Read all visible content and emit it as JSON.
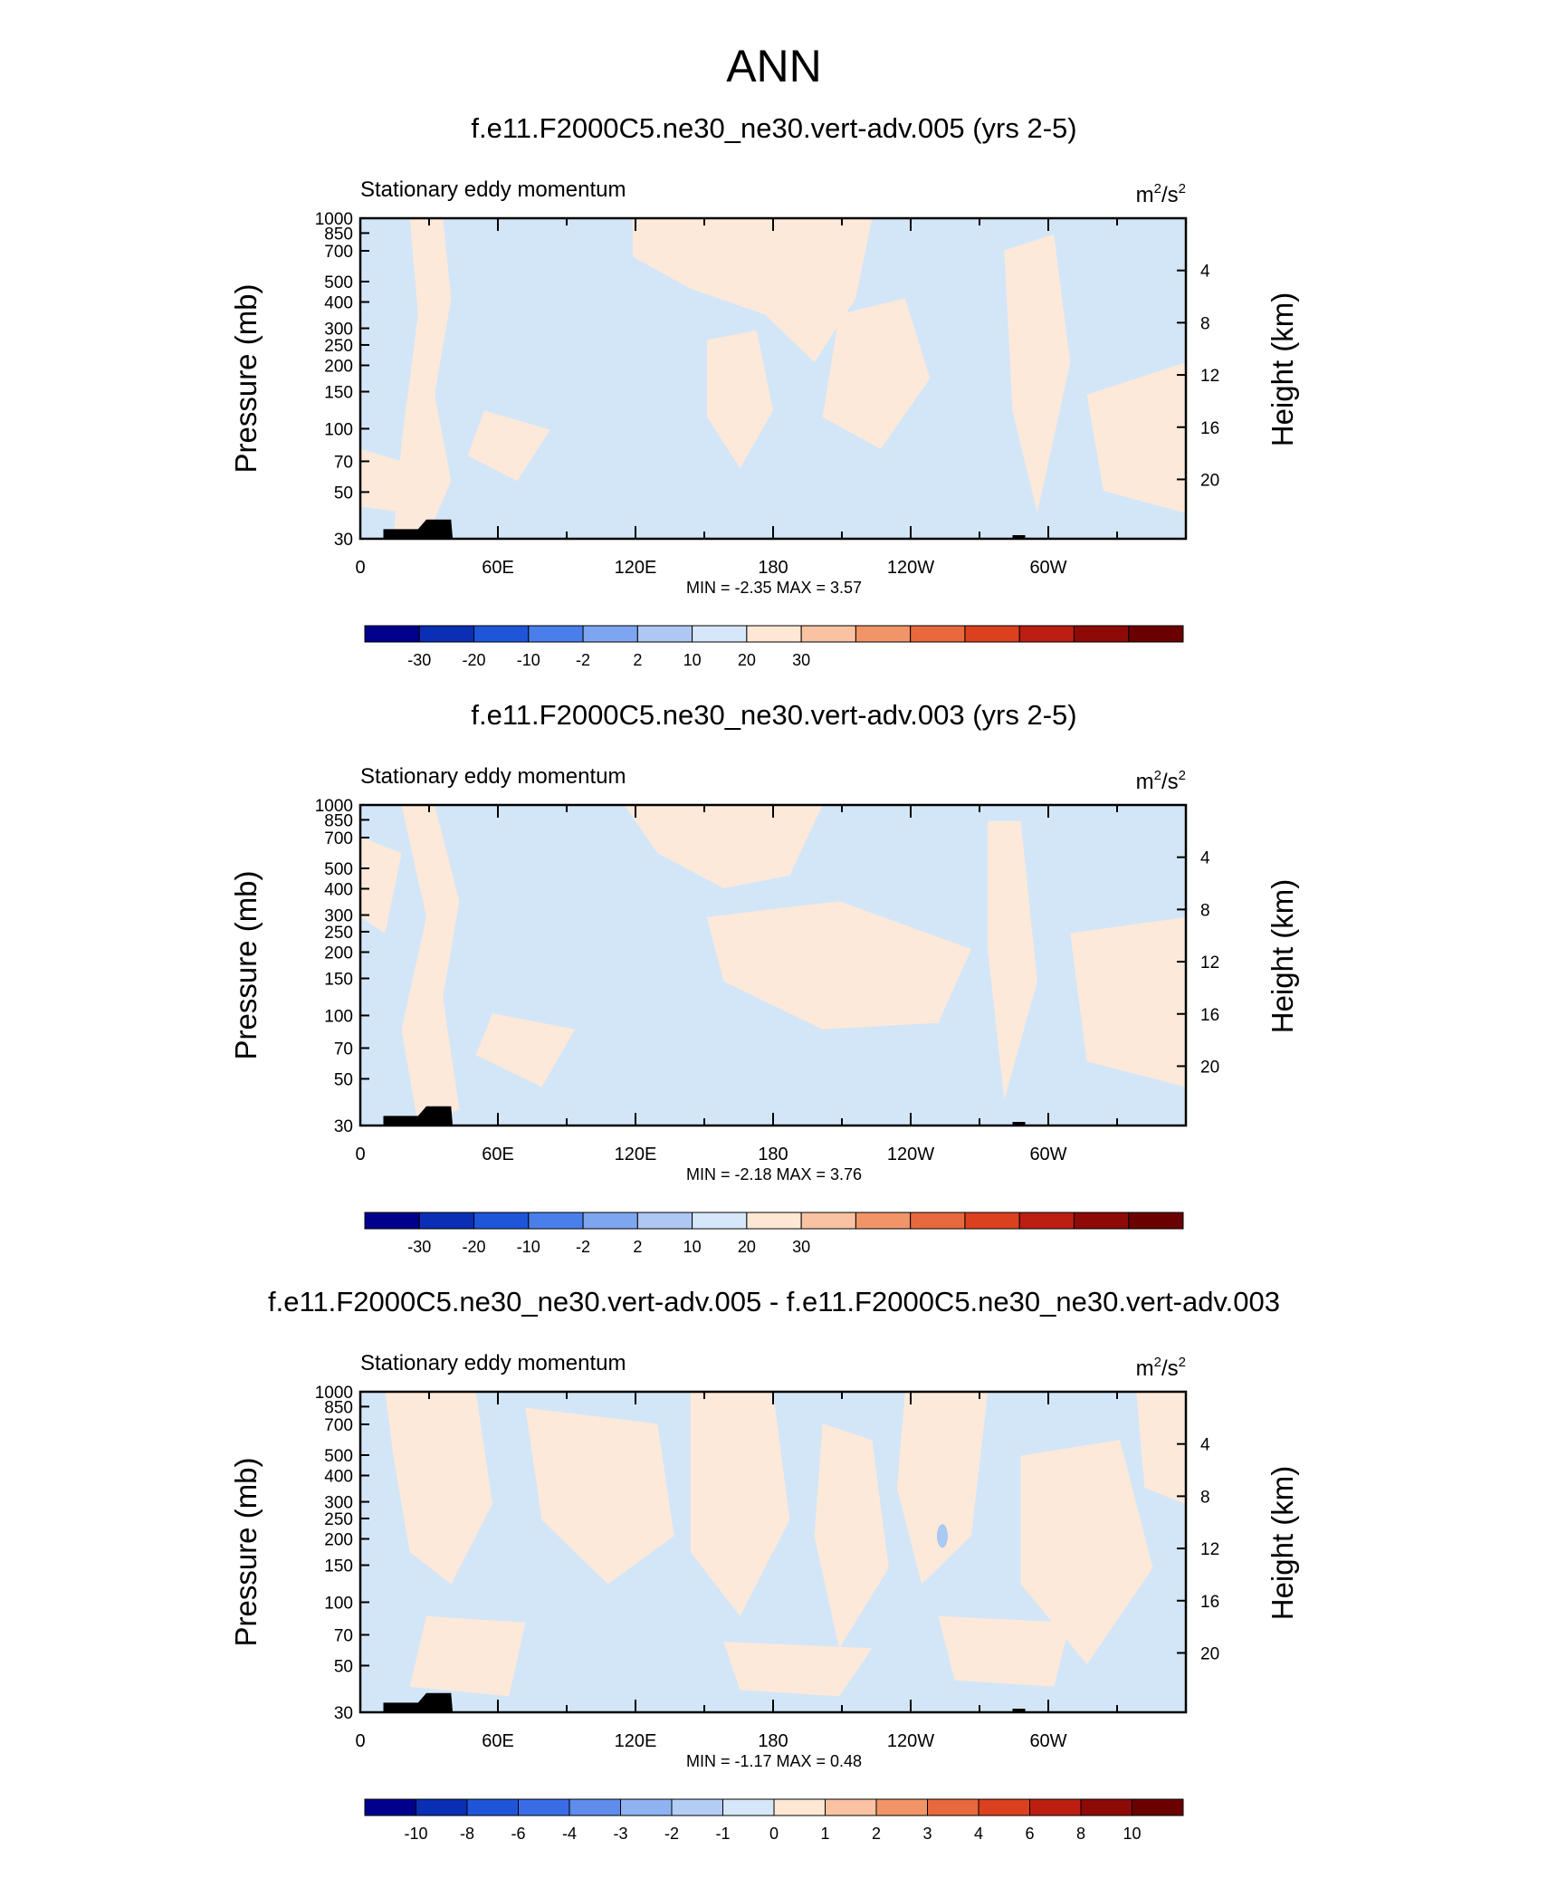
{
  "page_title": "ANN",
  "colors": {
    "positive_fill": "#FDE9D9",
    "negative_fill": "#D3E6F8",
    "strong_negative_fill": "#A9C9F2",
    "topography": "#000000"
  },
  "chart_data": [
    {
      "type": "heatmap",
      "title": "f.e11.F2000C5.ne30_ne30.vert-adv.005 (yrs 2-5)",
      "left_label": "Stationary eddy momentum",
      "units_base": "m",
      "units_exp1": "2",
      "units_sep": "/s",
      "units_exp2": "2",
      "ylabel": "Pressure (mb)",
      "y2label": "Height (km)",
      "yticks": [
        "30",
        "50",
        "70",
        "100",
        "150",
        "200",
        "250",
        "300",
        "400",
        "500",
        "700",
        "850",
        "1000"
      ],
      "y2ticks": [
        "20",
        "16",
        "12",
        "8",
        "4"
      ],
      "xticks": [
        "0",
        "60E",
        "120E",
        "180",
        "120W",
        "60W"
      ],
      "ylim": [
        1000,
        30
      ],
      "y_scale": "log",
      "minmax_text": "MIN =  -2.35  MAX =   3.57",
      "min": -2.35,
      "max": 3.57,
      "colorbar_labels": [
        "-30",
        "-20",
        "-10",
        "-2",
        "2",
        "10",
        "20",
        "30"
      ],
      "colorbar_colors": [
        "#00008C",
        "#0A2EB4",
        "#1F56D9",
        "#4A7EEA",
        "#7EA5F0",
        "#AEC8F3",
        "#D6E7F9",
        "#FEE8D4",
        "#F9C2A2",
        "#F19568",
        "#E8693D",
        "#DB401F",
        "#BC1E12",
        "#8E0A07",
        "#6B0000"
      ]
    },
    {
      "type": "heatmap",
      "title": "f.e11.F2000C5.ne30_ne30.vert-adv.003 (yrs 2-5)",
      "left_label": "Stationary eddy momentum",
      "units_base": "m",
      "units_exp1": "2",
      "units_sep": "/s",
      "units_exp2": "2",
      "ylabel": "Pressure (mb)",
      "y2label": "Height (km)",
      "yticks": [
        "30",
        "50",
        "70",
        "100",
        "150",
        "200",
        "250",
        "300",
        "400",
        "500",
        "700",
        "850",
        "1000"
      ],
      "y2ticks": [
        "20",
        "16",
        "12",
        "8",
        "4"
      ],
      "xticks": [
        "0",
        "60E",
        "120E",
        "180",
        "120W",
        "60W"
      ],
      "ylim": [
        1000,
        30
      ],
      "y_scale": "log",
      "minmax_text": "MIN =  -2.18  MAX =   3.76",
      "min": -2.18,
      "max": 3.76,
      "colorbar_labels": [
        "-30",
        "-20",
        "-10",
        "-2",
        "2",
        "10",
        "20",
        "30"
      ],
      "colorbar_colors": [
        "#00008C",
        "#0A2EB4",
        "#1F56D9",
        "#4A7EEA",
        "#7EA5F0",
        "#AEC8F3",
        "#D6E7F9",
        "#FEE8D4",
        "#F9C2A2",
        "#F19568",
        "#E8693D",
        "#DB401F",
        "#BC1E12",
        "#8E0A07",
        "#6B0000"
      ]
    },
    {
      "type": "heatmap",
      "title": "f.e11.F2000C5.ne30_ne30.vert-adv.005 - f.e11.F2000C5.ne30_ne30.vert-adv.003",
      "left_label": "Stationary eddy momentum",
      "units_base": "m",
      "units_exp1": "2",
      "units_sep": "/s",
      "units_exp2": "2",
      "ylabel": "Pressure (mb)",
      "y2label": "Height (km)",
      "yticks": [
        "30",
        "50",
        "70",
        "100",
        "150",
        "200",
        "250",
        "300",
        "400",
        "500",
        "700",
        "850",
        "1000"
      ],
      "y2ticks": [
        "20",
        "16",
        "12",
        "8",
        "4"
      ],
      "xticks": [
        "0",
        "60E",
        "120E",
        "180",
        "120W",
        "60W"
      ],
      "ylim": [
        1000,
        30
      ],
      "y_scale": "log",
      "minmax_text": "MIN =  -1.17  MAX =   0.48",
      "min": -1.17,
      "max": 0.48,
      "colorbar_labels": [
        "-10",
        "-8",
        "-6",
        "-4",
        "-3",
        "-2",
        "-1",
        "0",
        "1",
        "2",
        "3",
        "4",
        "6",
        "8",
        "10"
      ],
      "colorbar_colors": [
        "#00008C",
        "#0A2EB4",
        "#1F56D9",
        "#3A6CE6",
        "#5F8DEC",
        "#8FB2F1",
        "#B4CDF4",
        "#D6E7F9",
        "#FEE8D4",
        "#F9C2A2",
        "#F19568",
        "#E8693D",
        "#DB401F",
        "#BC1E12",
        "#8E0A07",
        "#6B0000"
      ]
    }
  ]
}
